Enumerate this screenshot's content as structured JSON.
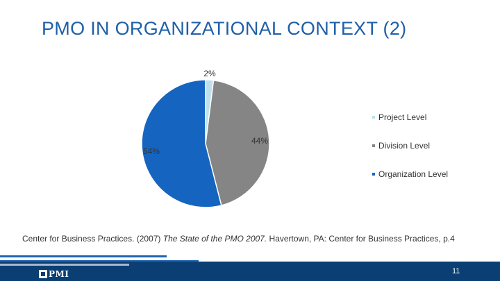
{
  "slide": {
    "title": "PMO IN ORGANIZATIONAL CONTEXT (2)",
    "source_prefix": "Center for Business Practices. (2007) ",
    "source_title": "The State of the PMO 2007.",
    "source_suffix": " Havertown, PA: Center for Business Practices, p.4",
    "page_number": "11",
    "logo_text": "PMI"
  },
  "chart_data": {
    "type": "pie",
    "categories": [
      "Project Level",
      "Division Level",
      "Organization Level"
    ],
    "values": [
      2,
      44,
      54
    ],
    "data_labels": [
      "2%",
      "44%",
      "54%"
    ],
    "colors": [
      "#bfe0ea",
      "#858585",
      "#1565c0"
    ],
    "legend_position": "right"
  }
}
